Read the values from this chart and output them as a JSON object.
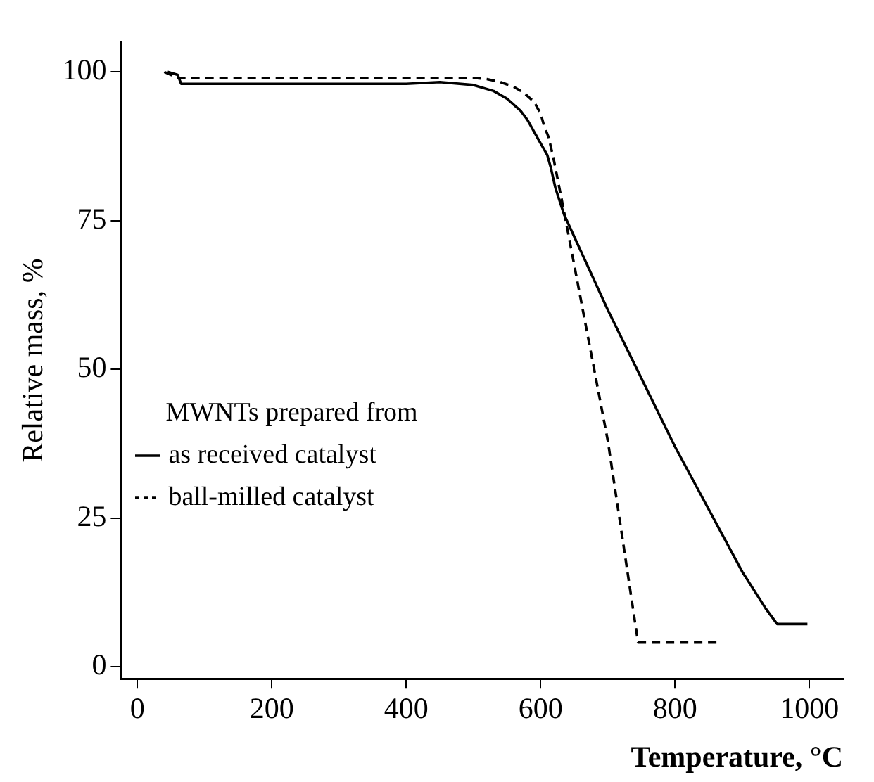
{
  "chart_data": {
    "type": "line",
    "xlabel": "Temperature, °C",
    "ylabel": "Relative mass, %",
    "legend_title": "MWNTs prepared from",
    "legend": "bottom left",
    "grid": false,
    "marker": "none",
    "xlim": [
      -25,
      1050
    ],
    "xticks": [
      0,
      200,
      400,
      600,
      800,
      1000
    ],
    "ylim": [
      -2,
      105
    ],
    "yticks": [
      0,
      25,
      50,
      75,
      100
    ],
    "series": [
      {
        "name": "as received catalyst",
        "color": "#000000",
        "line_style": "solid",
        "x": [
          45,
          60,
          65,
          100,
          200,
          300,
          400,
          450,
          500,
          530,
          550,
          570,
          580,
          590,
          600,
          610,
          615,
          622,
          635,
          700,
          800,
          900,
          935,
          952,
          997
        ],
        "values": [
          100,
          99.5,
          98,
          98,
          98,
          98,
          98,
          98.3,
          97.8,
          96.8,
          95.5,
          93.5,
          92,
          90,
          88,
          86,
          84,
          80.5,
          76,
          60,
          37,
          16,
          9.8,
          7.2,
          7.2
        ]
      },
      {
        "name": "ball-milled catalyst",
        "color": "#000000",
        "line_style": "dashed",
        "x": [
          40,
          60,
          100,
          200,
          300,
          400,
          500,
          520,
          540,
          560,
          575,
          590,
          600,
          605,
          612,
          620,
          633,
          700,
          745,
          869
        ],
        "values": [
          100,
          99,
          99,
          99,
          99,
          99,
          99,
          98.8,
          98.3,
          97.5,
          96.5,
          95,
          93,
          91,
          89,
          85,
          77.6,
          38,
          4.1,
          4.1
        ]
      }
    ]
  }
}
